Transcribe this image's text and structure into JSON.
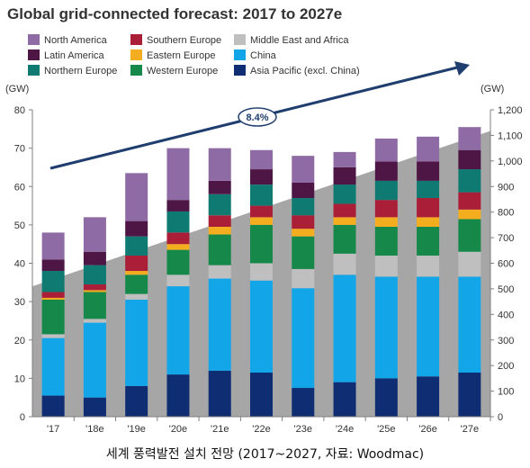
{
  "chart_data": {
    "type": "bar",
    "title": "Global grid-connected forecast: 2017 to 2027e",
    "left_unit": "(GW)",
    "right_unit": "(GW)",
    "categories": [
      "'17",
      "'18e",
      "'19e",
      "'20e",
      "'21e",
      "'22e",
      "'23e",
      "'24e",
      "'25e",
      "'26e",
      "'27e"
    ],
    "y_left": {
      "min": 0,
      "max": 80,
      "ticks": [
        "0",
        "10",
        "20",
        "30",
        "40",
        "50",
        "60",
        "70",
        "80"
      ]
    },
    "y_right": {
      "min": 0,
      "max": 1200,
      "ticks": [
        "0",
        "100",
        "200",
        "300",
        "400",
        "500",
        "600",
        "700",
        "800",
        "900",
        "1,000",
        "1,100",
        "1,200"
      ]
    },
    "series": [
      {
        "name": "Asia Pacific (excl. China)",
        "color": "#0f2d73",
        "values": [
          5.5,
          5.0,
          8.0,
          11.0,
          12.0,
          11.5,
          7.5,
          9.0,
          10.0,
          10.5,
          11.5
        ]
      },
      {
        "name": "China",
        "color": "#12a5e8",
        "values": [
          15.0,
          19.5,
          22.5,
          23.0,
          24.0,
          24.0,
          26.0,
          28.0,
          26.5,
          26.0,
          25.0
        ]
      },
      {
        "name": "Middle East and Africa",
        "color": "#bfbfbf",
        "values": [
          1.0,
          1.0,
          1.5,
          3.0,
          3.5,
          4.5,
          5.0,
          5.5,
          5.5,
          5.5,
          6.5
        ]
      },
      {
        "name": "Western Europe",
        "color": "#16884a",
        "values": [
          9.0,
          7.0,
          5.0,
          6.5,
          8.0,
          10.0,
          8.5,
          7.5,
          7.5,
          7.5,
          8.5
        ]
      },
      {
        "name": "Eastern Europe",
        "color": "#f3ad1f",
        "values": [
          0.5,
          0.5,
          1.0,
          1.5,
          2.0,
          2.0,
          2.0,
          2.0,
          2.5,
          2.5,
          2.5
        ]
      },
      {
        "name": "Southern Europe",
        "color": "#ab1e37",
        "values": [
          1.5,
          1.5,
          4.0,
          3.0,
          3.0,
          3.0,
          3.5,
          3.5,
          4.5,
          5.0,
          4.5
        ]
      },
      {
        "name": "Northern Europe",
        "color": "#0f7a72",
        "values": [
          5.5,
          5.0,
          5.0,
          5.5,
          5.5,
          5.5,
          4.5,
          5.0,
          5.0,
          4.5,
          6.0
        ]
      },
      {
        "name": "Latin America",
        "color": "#4e1645",
        "values": [
          3.0,
          3.5,
          4.0,
          3.0,
          3.5,
          4.0,
          4.0,
          4.5,
          5.0,
          5.0,
          5.0
        ]
      },
      {
        "name": "North America",
        "color": "#8f6ba6",
        "values": [
          7.0,
          9.0,
          12.5,
          13.5,
          8.5,
          5.0,
          7.0,
          4.0,
          6.0,
          6.5,
          6.0
        ]
      }
    ],
    "cumulative_area": {
      "color": "#a6a6a6",
      "y_left_values": [
        34.0,
        74.5
      ]
    },
    "trend_arrow": {
      "label": "8.4%",
      "color": "#1f3d6e"
    },
    "grid": false,
    "legend_position": "top-left"
  },
  "caption": "세계 풍력발전 설치 전망 (2017~2027, 자료: Woodmac)"
}
